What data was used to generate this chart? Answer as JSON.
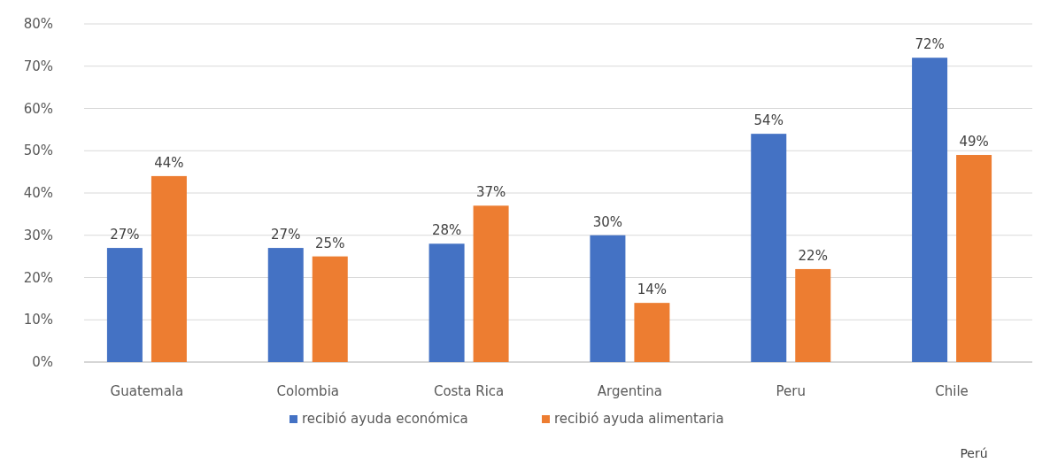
{
  "chart_data": {
    "type": "bar",
    "categories": [
      "Guatemala",
      "Colombia",
      "Costa Rica",
      "Argentina",
      "Peru",
      "Chile"
    ],
    "series": [
      {
        "name": "recibió ayuda económica",
        "color": "#4472c4",
        "values": [
          27,
          27,
          28,
          30,
          54,
          72
        ],
        "value_labels": [
          "27%",
          "27%",
          "28%",
          "30%",
          "54%",
          "72%"
        ]
      },
      {
        "name": "recibió ayuda alimentaria",
        "color": "#ed7d31",
        "values": [
          44,
          25,
          37,
          14,
          22,
          49
        ],
        "value_labels": [
          "44%",
          "25%",
          "37%",
          "14%",
          "22%",
          "49%"
        ]
      }
    ],
    "ylim": [
      0,
      80
    ],
    "yticks": [
      {
        "value": 0,
        "label": "0%"
      },
      {
        "value": 10,
        "label": "10%"
      },
      {
        "value": 20,
        "label": "20%"
      },
      {
        "value": 30,
        "label": "30%"
      },
      {
        "value": 40,
        "label": "40%"
      },
      {
        "value": 50,
        "label": "50%"
      },
      {
        "value": 60,
        "label": "60%"
      },
      {
        "value": 70,
        "label": "70%"
      },
      {
        "value": 80,
        "label": "80%"
      }
    ],
    "grid": "y",
    "legend": "bottom",
    "annotations": [
      "Perú"
    ]
  }
}
